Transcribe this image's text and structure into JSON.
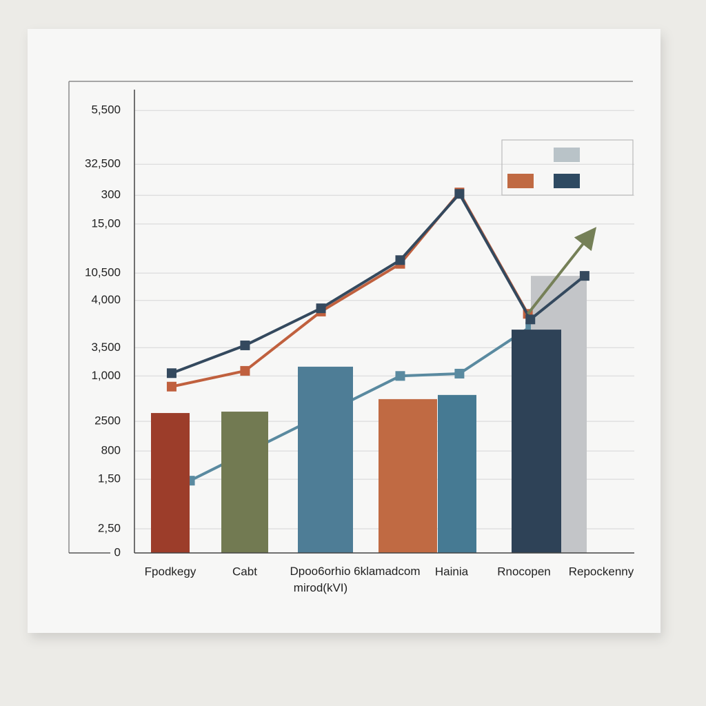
{
  "chart_data": {
    "type": "bar",
    "categories": [
      "Fpodkegy",
      "Cabt",
      "Dpoo6orhio 6klamadcom\nmirod(kVI)",
      "Hainia",
      "Rnocopen",
      "Repockenny"
    ],
    "ylim": [
      0,
      100
    ],
    "yticks": [
      {
        "value": 95.5,
        "label": "5,500"
      },
      {
        "value": 83.9,
        "label": "32,500"
      },
      {
        "value": 77.2,
        "label": "300"
      },
      {
        "value": 71.0,
        "label": "15,00"
      },
      {
        "value": 60.4,
        "label": "10,500"
      },
      {
        "value": 54.5,
        "label": "4,000"
      },
      {
        "value": 44.3,
        "label": "3,500"
      },
      {
        "value": 38.2,
        "label": "1,000"
      },
      {
        "value": 28.4,
        "label": "2500"
      },
      {
        "value": 22.0,
        "label": "800"
      },
      {
        "value": 15.9,
        "label": "1,50"
      },
      {
        "value": 5.2,
        "label": "2,50"
      },
      0
    ],
    "grid": true,
    "series": [
      {
        "type": "bar",
        "values": [
          30.2,
          30.5,
          40.2,
          33.2,
          48.2,
          59.8
        ],
        "colors": [
          "#9c3d2a",
          "#727a52",
          "#4e7d96",
          "#c06a43",
          "#2e4257",
          "#c3c5c8"
        ]
      },
      {
        "type": "bar",
        "values": [
          null,
          null,
          null,
          34.1,
          null,
          null
        ],
        "color": "#467a93"
      },
      {
        "type": "line",
        "color": "#5a8aa0",
        "x": [
          0.17,
          2.69,
          3.4,
          4.25
        ],
        "values": [
          15.6,
          38.2,
          38.7,
          48.8
        ]
      },
      {
        "type": "line",
        "color": "#c0603e",
        "x": [
          -0.05,
          0.83,
          1.74,
          2.69,
          3.4,
          4.22
        ],
        "values": [
          35.9,
          39.3,
          52.1,
          62.4,
          77.8,
          51.6
        ]
      },
      {
        "type": "line",
        "color": "#34495e",
        "x": [
          -0.05,
          0.83,
          1.74,
          2.69,
          3.4,
          4.25,
          4.9
        ],
        "values": [
          38.8,
          44.8,
          52.8,
          63.2,
          77.5,
          50.4,
          59.8
        ]
      },
      {
        "type": "line",
        "color": "#758057",
        "arrow": true,
        "x": [
          4.22,
          4.96
        ],
        "values": [
          51.6,
          68.5
        ]
      }
    ],
    "legend": {
      "colors": [
        "#b9c3c8",
        "#c06a43",
        "#2e4a62"
      ]
    }
  }
}
